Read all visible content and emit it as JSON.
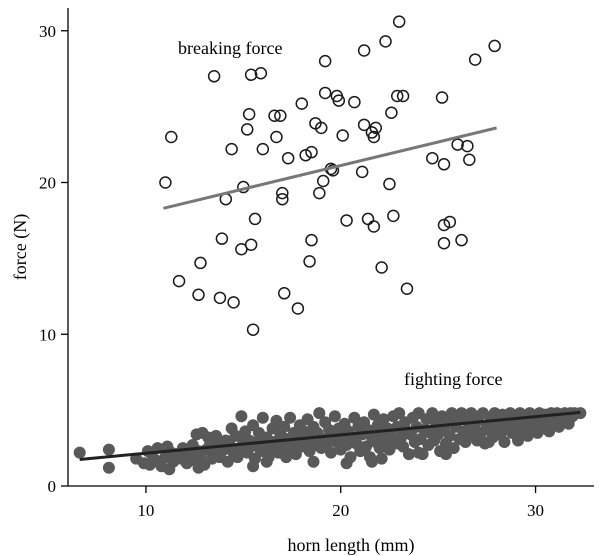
{
  "chart_data": {
    "type": "scatter",
    "title": "",
    "xlabel": "horn length (mm)",
    "ylabel": "force (N)",
    "xlim": [
      6,
      33
    ],
    "ylim": [
      0,
      31.5
    ],
    "xticks": [
      10,
      20,
      30
    ],
    "yticks": [
      0,
      10,
      20,
      30
    ],
    "grid": false,
    "legend": "none",
    "annotations": [
      {
        "text": "breaking force"
      },
      {
        "text": "fighting force"
      }
    ],
    "series": [
      {
        "marker": "open-circle",
        "color": "#1a1a1a",
        "trend_color": "#777777",
        "trend_line": {
          "x": [
            10.9,
            28
          ],
          "y": [
            18.3,
            23.6
          ]
        },
        "points": [
          [
            11,
            20
          ],
          [
            11.3,
            23
          ],
          [
            11.7,
            13.5
          ],
          [
            12.7,
            12.6
          ],
          [
            12.8,
            14.7
          ],
          [
            13.5,
            27
          ],
          [
            13.8,
            12.4
          ],
          [
            13.9,
            16.3
          ],
          [
            14.1,
            18.9
          ],
          [
            14.4,
            22.2
          ],
          [
            14.5,
            12.1
          ],
          [
            14.9,
            15.6
          ],
          [
            15,
            19.7
          ],
          [
            15.2,
            23.5
          ],
          [
            15.3,
            24.5
          ],
          [
            15.4,
            27.1
          ],
          [
            15.4,
            15.9
          ],
          [
            15.5,
            10.3
          ],
          [
            15.6,
            17.6
          ],
          [
            15.9,
            27.2
          ],
          [
            16,
            22.2
          ],
          [
            16.6,
            24.4
          ],
          [
            16.7,
            23
          ],
          [
            16.9,
            24.4
          ],
          [
            17,
            19.3
          ],
          [
            17,
            18.9
          ],
          [
            17.1,
            12.7
          ],
          [
            17.3,
            21.6
          ],
          [
            17.8,
            11.7
          ],
          [
            18,
            25.2
          ],
          [
            18.2,
            21.8
          ],
          [
            18.5,
            22
          ],
          [
            18.5,
            16.2
          ],
          [
            18.4,
            14.8
          ],
          [
            18.7,
            23.9
          ],
          [
            18.9,
            19.3
          ],
          [
            19,
            23.6
          ],
          [
            19.1,
            20.1
          ],
          [
            19.2,
            25.9
          ],
          [
            19.2,
            28
          ],
          [
            19.5,
            20.9
          ],
          [
            19.6,
            20.8
          ],
          [
            19.8,
            25.7
          ],
          [
            19.9,
            25.4
          ],
          [
            20.1,
            23.1
          ],
          [
            20.3,
            17.5
          ],
          [
            20.7,
            25.3
          ],
          [
            21.1,
            20.7
          ],
          [
            21.2,
            28.7
          ],
          [
            21.2,
            23.8
          ],
          [
            21.4,
            17.6
          ],
          [
            21.6,
            23.3
          ],
          [
            21.7,
            23
          ],
          [
            21.7,
            17.1
          ],
          [
            21.8,
            23.6
          ],
          [
            22.1,
            14.4
          ],
          [
            22.3,
            29.3
          ],
          [
            22.5,
            19.9
          ],
          [
            22.6,
            24.6
          ],
          [
            22.7,
            17.8
          ],
          [
            22.9,
            25.7
          ],
          [
            23,
            30.6
          ],
          [
            23.2,
            25.7
          ],
          [
            23.4,
            13
          ],
          [
            24.7,
            21.6
          ],
          [
            25.2,
            25.6
          ],
          [
            25.3,
            21.2
          ],
          [
            25.3,
            17.2
          ],
          [
            25.3,
            16
          ],
          [
            25.6,
            17.4
          ],
          [
            26,
            22.5
          ],
          [
            26.2,
            16.2
          ],
          [
            26.5,
            22.4
          ],
          [
            26.6,
            21.5
          ],
          [
            26.9,
            28.1
          ],
          [
            27.9,
            29
          ]
        ]
      },
      {
        "marker": "filled-circle",
        "color": "#595959",
        "trend_color": "#222222",
        "trend_line": {
          "x": [
            6.6,
            32.3
          ],
          "y": [
            1.75,
            4.85
          ]
        },
        "points": [
          [
            6.6,
            2.2
          ],
          [
            8.1,
            2.4
          ],
          [
            8.1,
            1.2
          ],
          [
            9.5,
            1.8
          ],
          [
            9.9,
            1.5
          ],
          [
            10.1,
            2.3
          ],
          [
            10.2,
            1.4
          ],
          [
            10.3,
            2.1
          ],
          [
            10.5,
            1.7
          ],
          [
            10.6,
            2.5
          ],
          [
            10.8,
            1.3
          ],
          [
            11,
            1.9
          ],
          [
            11.1,
            2.6
          ],
          [
            11.2,
            1.1
          ],
          [
            11.3,
            2.2
          ],
          [
            11.4,
            1.6
          ],
          [
            11.6,
            2.1
          ],
          [
            11.8,
            1.8
          ],
          [
            11.9,
            2.5
          ],
          [
            12.1,
            1.5
          ],
          [
            12.2,
            2
          ],
          [
            12.4,
            2.7
          ],
          [
            12.5,
            1.7
          ],
          [
            12.6,
            3.4
          ],
          [
            12.7,
            2.3
          ],
          [
            12.8,
            1.9
          ],
          [
            12.9,
            3.5
          ],
          [
            13,
            1.4
          ],
          [
            13.1,
            2.4
          ],
          [
            13.2,
            3.2
          ],
          [
            13.3,
            2.8
          ],
          [
            13.4,
            1.8
          ],
          [
            13.5,
            2.1
          ],
          [
            13.6,
            3.3
          ],
          [
            13.7,
            2.6
          ],
          [
            13.8,
            1.9
          ],
          [
            14,
            2.4
          ],
          [
            14.1,
            3
          ],
          [
            14.2,
            1.6
          ],
          [
            14.3,
            2.7
          ],
          [
            14.4,
            3.8
          ],
          [
            14.5,
            2.2
          ],
          [
            14.6,
            3.3
          ],
          [
            14.7,
            1.9
          ],
          [
            14.8,
            2.5
          ],
          [
            14.9,
            4.6
          ],
          [
            15,
            2.9
          ],
          [
            15.1,
            3.6
          ],
          [
            15.2,
            2.2
          ],
          [
            15.3,
            3
          ],
          [
            15.4,
            2.6
          ],
          [
            15.5,
            4
          ],
          [
            15.6,
            1.8
          ],
          [
            15.7,
            2.9
          ],
          [
            15.8,
            3.5
          ],
          [
            15.9,
            2.3
          ],
          [
            16,
            4.5
          ],
          [
            16.1,
            2.7
          ],
          [
            16.2,
            3.2
          ],
          [
            16.3,
            1.9
          ],
          [
            16.4,
            2.5
          ],
          [
            16.5,
            3.8
          ],
          [
            16.6,
            2.9
          ],
          [
            16.7,
            4.3
          ],
          [
            16.8,
            2.2
          ],
          [
            16.9,
            3.4
          ],
          [
            17,
            2.7
          ],
          [
            17.1,
            3.9
          ],
          [
            17.2,
            2.4
          ],
          [
            17.3,
            3.1
          ],
          [
            17.4,
            4.5
          ],
          [
            17.5,
            2.8
          ],
          [
            17.6,
            3.5
          ],
          [
            17.7,
            2.1
          ],
          [
            17.8,
            3.2
          ],
          [
            17.9,
            4
          ],
          [
            18,
            2.6
          ],
          [
            18.1,
            3.6
          ],
          [
            18.2,
            2.9
          ],
          [
            18.3,
            4.4
          ],
          [
            18.4,
            2.3
          ],
          [
            18.5,
            3.3
          ],
          [
            18.6,
            3.9
          ],
          [
            18.7,
            2.7
          ],
          [
            18.8,
            3.5
          ],
          [
            18.9,
            4.8
          ],
          [
            19,
            2.5
          ],
          [
            19.1,
            3.1
          ],
          [
            19.2,
            4.2
          ],
          [
            19.3,
            2.8
          ],
          [
            19.4,
            3.7
          ],
          [
            19.5,
            2.2
          ],
          [
            19.6,
            3.4
          ],
          [
            19.7,
            4.6
          ],
          [
            19.8,
            2.9
          ],
          [
            19.9,
            3.8
          ],
          [
            20,
            2.4
          ],
          [
            20.1,
            3.3
          ],
          [
            20.2,
            4.1
          ],
          [
            20.3,
            2.7
          ],
          [
            20.4,
            3.6
          ],
          [
            20.5,
            1.9
          ],
          [
            20.6,
            3.1
          ],
          [
            20.7,
            4.5
          ],
          [
            20.8,
            2.8
          ],
          [
            20.9,
            3.9
          ],
          [
            21,
            2.3
          ],
          [
            21.1,
            3.4
          ],
          [
            21.2,
            4.2
          ],
          [
            21.3,
            2.6
          ],
          [
            21.4,
            3.7
          ],
          [
            21.5,
            1.9
          ],
          [
            21.6,
            3.2
          ],
          [
            21.7,
            4.7
          ],
          [
            21.8,
            2.9
          ],
          [
            21.9,
            4
          ],
          [
            22,
            2.5
          ],
          [
            22.1,
            3.5
          ],
          [
            22.2,
            4.4
          ],
          [
            22.3,
            3
          ],
          [
            22.4,
            3.8
          ],
          [
            22.5,
            2.4
          ],
          [
            22.6,
            3.3
          ],
          [
            22.7,
            4.6
          ],
          [
            22.8,
            2.8
          ],
          [
            22.9,
            3.9
          ],
          [
            23,
            4.8
          ],
          [
            23.1,
            3.2
          ],
          [
            23.2,
            2.6
          ],
          [
            23.3,
            4.2
          ],
          [
            23.4,
            3.6
          ],
          [
            23.5,
            2.1
          ],
          [
            23.6,
            3.4
          ],
          [
            23.7,
            4.5
          ],
          [
            23.8,
            2.9
          ],
          [
            23.9,
            3.9
          ],
          [
            24,
            4.8
          ],
          [
            24.1,
            3.1
          ],
          [
            24.2,
            2.1
          ],
          [
            24.3,
            3.7
          ],
          [
            24.4,
            4.4
          ],
          [
            24.5,
            2.7
          ],
          [
            24.6,
            3.5
          ],
          [
            24.7,
            4.8
          ],
          [
            24.8,
            3
          ],
          [
            24.9,
            4.1
          ],
          [
            25,
            3.4
          ],
          [
            25.1,
            2.3
          ],
          [
            25.2,
            4.6
          ],
          [
            25.3,
            3.8
          ],
          [
            25.4,
            2.8
          ],
          [
            25.5,
            4.3
          ],
          [
            25.6,
            3.3
          ],
          [
            25.7,
            4.8
          ],
          [
            25.8,
            2.5
          ],
          [
            25.9,
            3.9
          ],
          [
            26,
            4.5
          ],
          [
            26.1,
            3.1
          ],
          [
            26.2,
            4.8
          ],
          [
            26.3,
            3.6
          ],
          [
            26.4,
            2.9
          ],
          [
            26.5,
            4.3
          ],
          [
            26.6,
            3.4
          ],
          [
            26.7,
            4.8
          ],
          [
            26.8,
            3.8
          ],
          [
            26.9,
            4.1
          ],
          [
            27,
            3
          ],
          [
            27.1,
            4.6
          ],
          [
            27.2,
            3.5
          ],
          [
            27.3,
            4.8
          ],
          [
            27.4,
            2.8
          ],
          [
            27.5,
            4
          ],
          [
            27.6,
            3.7
          ],
          [
            27.7,
            4.5
          ],
          [
            27.8,
            3.2
          ],
          [
            27.9,
            4.8
          ],
          [
            28,
            3.9
          ],
          [
            28.1,
            4.3
          ],
          [
            28.2,
            3.4
          ],
          [
            28.3,
            4.7
          ],
          [
            28.4,
            2.9
          ],
          [
            28.5,
            4.1
          ],
          [
            28.6,
            3.8
          ],
          [
            28.7,
            4.8
          ],
          [
            28.8,
            3.5
          ],
          [
            28.9,
            4.4
          ],
          [
            29,
            4
          ],
          [
            29.1,
            3.2
          ],
          [
            29.2,
            4.8
          ],
          [
            29.3,
            4.3
          ],
          [
            29.4,
            3.7
          ],
          [
            29.5,
            4.6
          ],
          [
            29.6,
            3.3
          ],
          [
            29.7,
            4.8
          ],
          [
            29.8,
            4.1
          ],
          [
            29.9,
            3.9
          ],
          [
            30,
            4.6
          ],
          [
            30.1,
            3.5
          ],
          [
            30.2,
            4.8
          ],
          [
            30.3,
            4.2
          ],
          [
            30.4,
            3.8
          ],
          [
            30.5,
            4.7
          ],
          [
            30.6,
            4
          ],
          [
            30.7,
            3.6
          ],
          [
            30.8,
            4.8
          ],
          [
            30.9,
            4.4
          ],
          [
            31,
            4.1
          ],
          [
            31.1,
            4.8
          ],
          [
            31.2,
            3.9
          ],
          [
            31.3,
            4.6
          ],
          [
            31.4,
            4.3
          ],
          [
            31.5,
            4.8
          ],
          [
            31.6,
            4.5
          ],
          [
            31.7,
            4.1
          ],
          [
            31.8,
            4.8
          ],
          [
            31.9,
            4.6
          ],
          [
            32,
            4.8
          ],
          [
            32.3,
            4.8
          ],
          [
            22.1,
            1.8
          ],
          [
            20.3,
            1.5
          ],
          [
            15.5,
            1.3
          ],
          [
            18.6,
            1.6
          ],
          [
            25.4,
            2.1
          ],
          [
            24,
            2.2
          ],
          [
            12.7,
            1.2
          ],
          [
            16.2,
            1.6
          ],
          [
            27.6,
            2.9
          ],
          [
            29.1,
            3
          ],
          [
            21.6,
            1.6
          ],
          [
            17.2,
            1.9
          ]
        ]
      }
    ]
  }
}
